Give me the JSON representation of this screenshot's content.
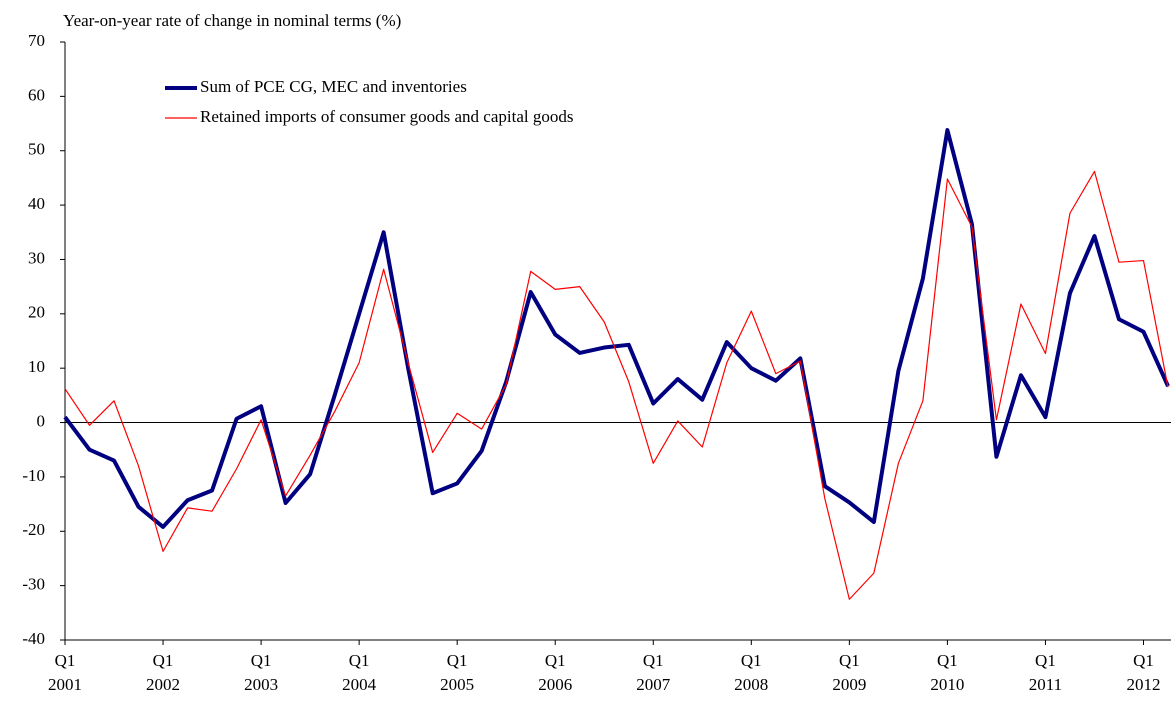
{
  "chart_data": {
    "type": "line",
    "y_axis_label": "Year-on-year rate of change in nominal terms (%)",
    "categories": [
      "Q1 2001",
      null,
      null,
      null,
      "Q1 2002",
      null,
      null,
      null,
      "Q1 2003",
      null,
      null,
      null,
      "Q1 2004",
      null,
      null,
      null,
      "Q1 2005",
      null,
      null,
      null,
      "Q1 2006",
      null,
      null,
      null,
      "Q1 2007",
      null,
      null,
      null,
      "Q1 2008",
      null,
      null,
      null,
      "Q1 2009",
      null,
      null,
      null,
      "Q1 2010",
      null,
      null,
      null,
      "Q1 2011",
      null,
      null,
      null,
      "Q1 2012",
      null
    ],
    "series": [
      {
        "name": "Sum of PCE CG, MEC and inventories",
        "color": "#000080",
        "width": 4,
        "values": [
          1,
          -5,
          -7,
          -15.5,
          -19.2,
          -14.3,
          -12.5,
          0.7,
          3,
          -14.8,
          -9.5,
          5,
          20,
          35,
          10,
          -13,
          -11.2,
          -5.2,
          7.5,
          24,
          16.2,
          12.8,
          13.8,
          14.3,
          3.5,
          8,
          4.2,
          14.8,
          10,
          7.7,
          11.8,
          -11.7,
          -14.7,
          -18.3,
          9.5,
          26.5,
          53.8,
          36.5,
          -6.3,
          8.7,
          1,
          23.8,
          34.3,
          19,
          16.7,
          6.7
        ]
      },
      {
        "name": "Retained imports of consumer goods and capital goods",
        "color": "#ff0000",
        "width": 1.2,
        "values": [
          6.2,
          -0.5,
          4,
          -8,
          -23.7,
          -15.7,
          -16.3,
          -8.5,
          0.5,
          -13.5,
          -6,
          2,
          11,
          28.2,
          11,
          -5.5,
          1.7,
          -1.2,
          7,
          27.8,
          24.5,
          25,
          18.5,
          7.5,
          -7.5,
          0.3,
          -4.5,
          11,
          20.5,
          9,
          11.3,
          -14,
          -32.5,
          -27.7,
          -7.5,
          4,
          44.8,
          36,
          0.5,
          21.8,
          12.7,
          38.5,
          46.2,
          29.5,
          29.8,
          6.5
        ]
      }
    ],
    "ylim": [
      -40,
      70
    ],
    "yticks": [
      -40,
      -30,
      -20,
      -10,
      0,
      10,
      20,
      30,
      40,
      50,
      60,
      70
    ],
    "grid": false,
    "legend": "upper left"
  }
}
